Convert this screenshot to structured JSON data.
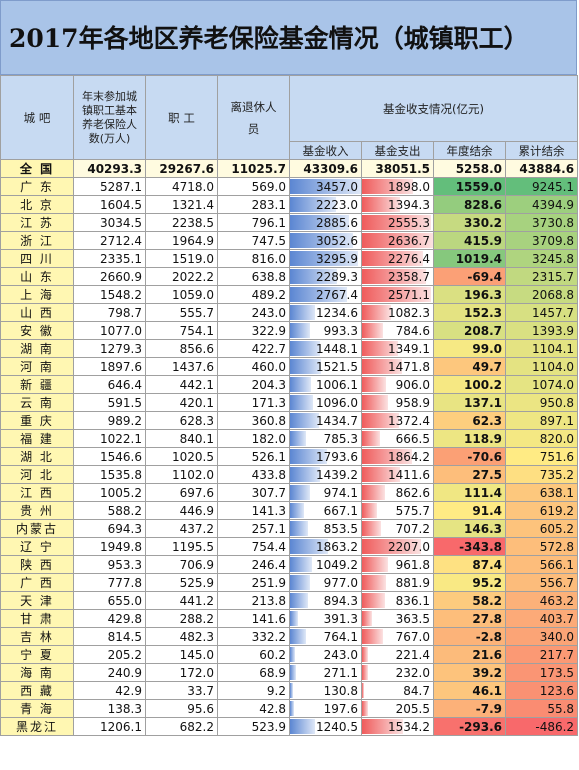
{
  "title": "2017年各地区养老保险基金情况（城镇职工）",
  "headers": {
    "region": "城 吧",
    "insured": "年末参加城镇职工基本养老保险人数(万人)",
    "workers": "职 工",
    "retirees": "离退休人 员",
    "fund_group": "基金收支情况(亿元)",
    "income": "基金收入",
    "expense": "基金支出",
    "balance": "年度结余",
    "cumulative": "累计结余"
  },
  "rows": [
    {
      "name": "全  国",
      "insured": "40293.3",
      "workers": "29267.6",
      "retirees": "11025.7",
      "income": "43309.6",
      "expense": "38051.5",
      "balance": "5258.0",
      "cumulative": "43884.6"
    },
    {
      "name": "广 东",
      "insured": "5287.1",
      "workers": "4718.0",
      "retirees": "569.0",
      "income": "3457.0",
      "expense": "1898.0",
      "balance": "1559.0",
      "cumulative": "9245.1"
    },
    {
      "name": "北 京",
      "insured": "1604.5",
      "workers": "1321.4",
      "retirees": "283.1",
      "income": "2223.0",
      "expense": "1394.3",
      "balance": "828.6",
      "cumulative": "4394.9"
    },
    {
      "name": "江 苏",
      "insured": "3034.5",
      "workers": "2238.5",
      "retirees": "796.1",
      "income": "2885.6",
      "expense": "2555.3",
      "balance": "330.2",
      "cumulative": "3730.8"
    },
    {
      "name": "浙 江",
      "insured": "2712.4",
      "workers": "1964.9",
      "retirees": "747.5",
      "income": "3052.6",
      "expense": "2636.7",
      "balance": "415.9",
      "cumulative": "3709.8"
    },
    {
      "name": "四 川",
      "insured": "2335.1",
      "workers": "1519.0",
      "retirees": "816.0",
      "income": "3295.9",
      "expense": "2276.4",
      "balance": "1019.4",
      "cumulative": "3245.8"
    },
    {
      "name": "山 东",
      "insured": "2660.9",
      "workers": "2022.2",
      "retirees": "638.8",
      "income": "2289.3",
      "expense": "2358.7",
      "balance": "-69.4",
      "cumulative": "2315.7"
    },
    {
      "name": "上 海",
      "insured": "1548.2",
      "workers": "1059.0",
      "retirees": "489.2",
      "income": "2767.4",
      "expense": "2571.1",
      "balance": "196.3",
      "cumulative": "2068.8"
    },
    {
      "name": "山 西",
      "insured": "798.7",
      "workers": "555.7",
      "retirees": "243.0",
      "income": "1234.6",
      "expense": "1082.3",
      "balance": "152.3",
      "cumulative": "1457.7"
    },
    {
      "name": "安 徽",
      "insured": "1077.0",
      "workers": "754.1",
      "retirees": "322.9",
      "income": "993.3",
      "expense": "784.6",
      "balance": "208.7",
      "cumulative": "1393.9"
    },
    {
      "name": "湖 南",
      "insured": "1279.3",
      "workers": "856.6",
      "retirees": "422.7",
      "income": "1448.1",
      "expense": "1349.1",
      "balance": "99.0",
      "cumulative": "1104.1"
    },
    {
      "name": "河 南",
      "insured": "1897.6",
      "workers": "1437.6",
      "retirees": "460.0",
      "income": "1521.5",
      "expense": "1471.8",
      "balance": "49.7",
      "cumulative": "1104.0"
    },
    {
      "name": "新 疆",
      "insured": "646.4",
      "workers": "442.1",
      "retirees": "204.3",
      "income": "1006.1",
      "expense": "906.0",
      "balance": "100.2",
      "cumulative": "1074.0"
    },
    {
      "name": "云 南",
      "insured": "591.5",
      "workers": "420.1",
      "retirees": "171.3",
      "income": "1096.0",
      "expense": "958.9",
      "balance": "137.1",
      "cumulative": "950.8"
    },
    {
      "name": "重 庆",
      "insured": "989.2",
      "workers": "628.3",
      "retirees": "360.8",
      "income": "1434.7",
      "expense": "1372.4",
      "balance": "62.3",
      "cumulative": "897.1"
    },
    {
      "name": "福 建",
      "insured": "1022.1",
      "workers": "840.1",
      "retirees": "182.0",
      "income": "785.3",
      "expense": "666.5",
      "balance": "118.9",
      "cumulative": "820.0"
    },
    {
      "name": "湖 北",
      "insured": "1546.6",
      "workers": "1020.5",
      "retirees": "526.1",
      "income": "1793.6",
      "expense": "1864.2",
      "balance": "-70.6",
      "cumulative": "751.6"
    },
    {
      "name": "河 北",
      "insured": "1535.8",
      "workers": "1102.0",
      "retirees": "433.8",
      "income": "1439.2",
      "expense": "1411.6",
      "balance": "27.5",
      "cumulative": "735.2"
    },
    {
      "name": "江 西",
      "insured": "1005.2",
      "workers": "697.6",
      "retirees": "307.7",
      "income": "974.1",
      "expense": "862.6",
      "balance": "111.4",
      "cumulative": "638.1"
    },
    {
      "name": "贵 州",
      "insured": "588.2",
      "workers": "446.9",
      "retirees": "141.3",
      "income": "667.1",
      "expense": "575.7",
      "balance": "91.4",
      "cumulative": "619.2"
    },
    {
      "name": "内蒙古",
      "insured": "694.3",
      "workers": "437.2",
      "retirees": "257.1",
      "income": "853.5",
      "expense": "707.2",
      "balance": "146.3",
      "cumulative": "605.2"
    },
    {
      "name": "辽 宁",
      "insured": "1949.8",
      "workers": "1195.5",
      "retirees": "754.4",
      "income": "1863.2",
      "expense": "2207.0",
      "balance": "-343.8",
      "cumulative": "572.8"
    },
    {
      "name": "陕 西",
      "insured": "953.3",
      "workers": "706.9",
      "retirees": "246.4",
      "income": "1049.2",
      "expense": "961.8",
      "balance": "87.4",
      "cumulative": "566.1"
    },
    {
      "name": "广 西",
      "insured": "777.8",
      "workers": "525.9",
      "retirees": "251.9",
      "income": "977.0",
      "expense": "881.9",
      "balance": "95.2",
      "cumulative": "556.7"
    },
    {
      "name": "天 津",
      "insured": "655.0",
      "workers": "441.2",
      "retirees": "213.8",
      "income": "894.3",
      "expense": "836.1",
      "balance": "58.2",
      "cumulative": "463.2"
    },
    {
      "name": "甘 肃",
      "insured": "429.8",
      "workers": "288.2",
      "retirees": "141.6",
      "income": "391.3",
      "expense": "363.5",
      "balance": "27.8",
      "cumulative": "403.7"
    },
    {
      "name": "吉 林",
      "insured": "814.5",
      "workers": "482.3",
      "retirees": "332.2",
      "income": "764.1",
      "expense": "767.0",
      "balance": "-2.8",
      "cumulative": "340.0"
    },
    {
      "name": "宁 夏",
      "insured": "205.2",
      "workers": "145.0",
      "retirees": "60.2",
      "income": "243.0",
      "expense": "221.4",
      "balance": "21.6",
      "cumulative": "217.7"
    },
    {
      "name": "海 南",
      "insured": "240.9",
      "workers": "172.0",
      "retirees": "68.9",
      "income": "271.1",
      "expense": "232.0",
      "balance": "39.2",
      "cumulative": "173.5"
    },
    {
      "name": "西 藏",
      "insured": "42.9",
      "workers": "33.7",
      "retirees": "9.2",
      "income": "130.8",
      "expense": "84.7",
      "balance": "46.1",
      "cumulative": "123.6"
    },
    {
      "name": "青 海",
      "insured": "138.3",
      "workers": "95.6",
      "retirees": "42.8",
      "income": "197.6",
      "expense": "205.5",
      "balance": "-7.9",
      "cumulative": "55.8"
    },
    {
      "name": "黑龙江",
      "insured": "1206.1",
      "workers": "682.2",
      "retirees": "523.9",
      "income": "1240.5",
      "expense": "1534.2",
      "balance": "-293.6",
      "cumulative": "-486.2"
    }
  ]
}
